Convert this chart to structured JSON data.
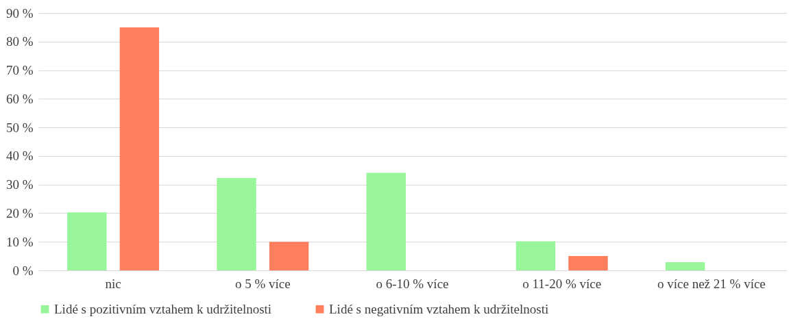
{
  "chart_data": {
    "type": "bar",
    "categories": [
      "nic",
      "o 5 % více",
      "o 6-10 % více",
      "o 11-20 % více",
      "o více než 21 % více"
    ],
    "series": [
      {
        "name": "Lidé s pozitivním vztahem k udržitelnosti",
        "color": "#99f599",
        "values": [
          20.3,
          32.3,
          34.1,
          10.2,
          2.9
        ]
      },
      {
        "name": "Lidé s negativním vztahem k udržitelnosti",
        "color": "#ff7f5c",
        "values": [
          85,
          10,
          0,
          5,
          0
        ]
      }
    ],
    "ylim": [
      0,
      90
    ],
    "yticks": [
      {
        "value": 0,
        "label": "0 %"
      },
      {
        "value": 10,
        "label": "10 %"
      },
      {
        "value": 20,
        "label": "20 %"
      },
      {
        "value": 30,
        "label": "30 %"
      },
      {
        "value": 40,
        "label": "40 %"
      },
      {
        "value": 50,
        "label": "50 %"
      },
      {
        "value": 60,
        "label": "60 %"
      },
      {
        "value": 70,
        "label": "70 %"
      },
      {
        "value": 80,
        "label": "80 %"
      },
      {
        "value": 90,
        "label": "90 %"
      }
    ],
    "grid": "y",
    "legend": "bottom"
  }
}
